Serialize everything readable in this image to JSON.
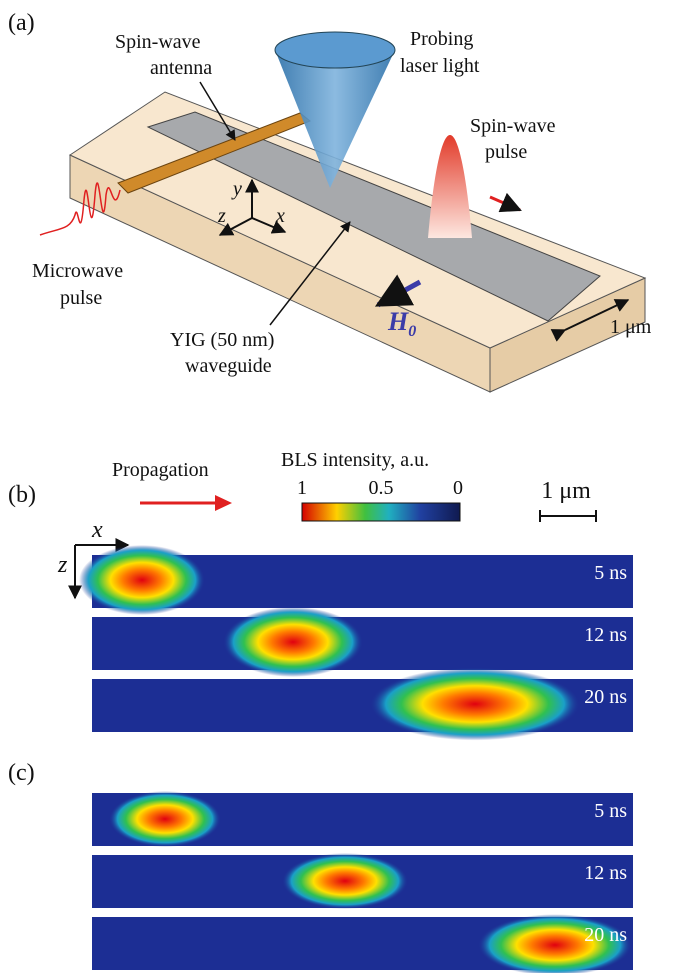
{
  "panel_a": {
    "label": "(a)",
    "antenna": [
      "Spin-wave",
      "antenna"
    ],
    "laser": [
      "Probing",
      "laser light"
    ],
    "pulse": [
      "Spin-wave",
      "pulse"
    ],
    "microwave": [
      "Microwave",
      "pulse"
    ],
    "waveguide": [
      "YIG (50 nm)",
      "waveguide"
    ],
    "width": "1 μm",
    "field": {
      "symbol": "H",
      "subscript": "0"
    },
    "axes": {
      "x": "x",
      "y": "y",
      "z": "z"
    }
  },
  "panel_b": {
    "label": "(b)",
    "propagation": "Propagation",
    "colorbar": {
      "title": "BLS intensity, a.u.",
      "ticks": [
        1,
        0.5,
        0
      ]
    },
    "scale": "1 μm",
    "axes": {
      "x": "x",
      "z": "z"
    },
    "times": [
      "5 ns",
      "12 ns",
      "20 ns"
    ]
  },
  "panel_c": {
    "label": "(c)",
    "times": [
      "5 ns",
      "12 ns",
      "20 ns"
    ]
  }
}
